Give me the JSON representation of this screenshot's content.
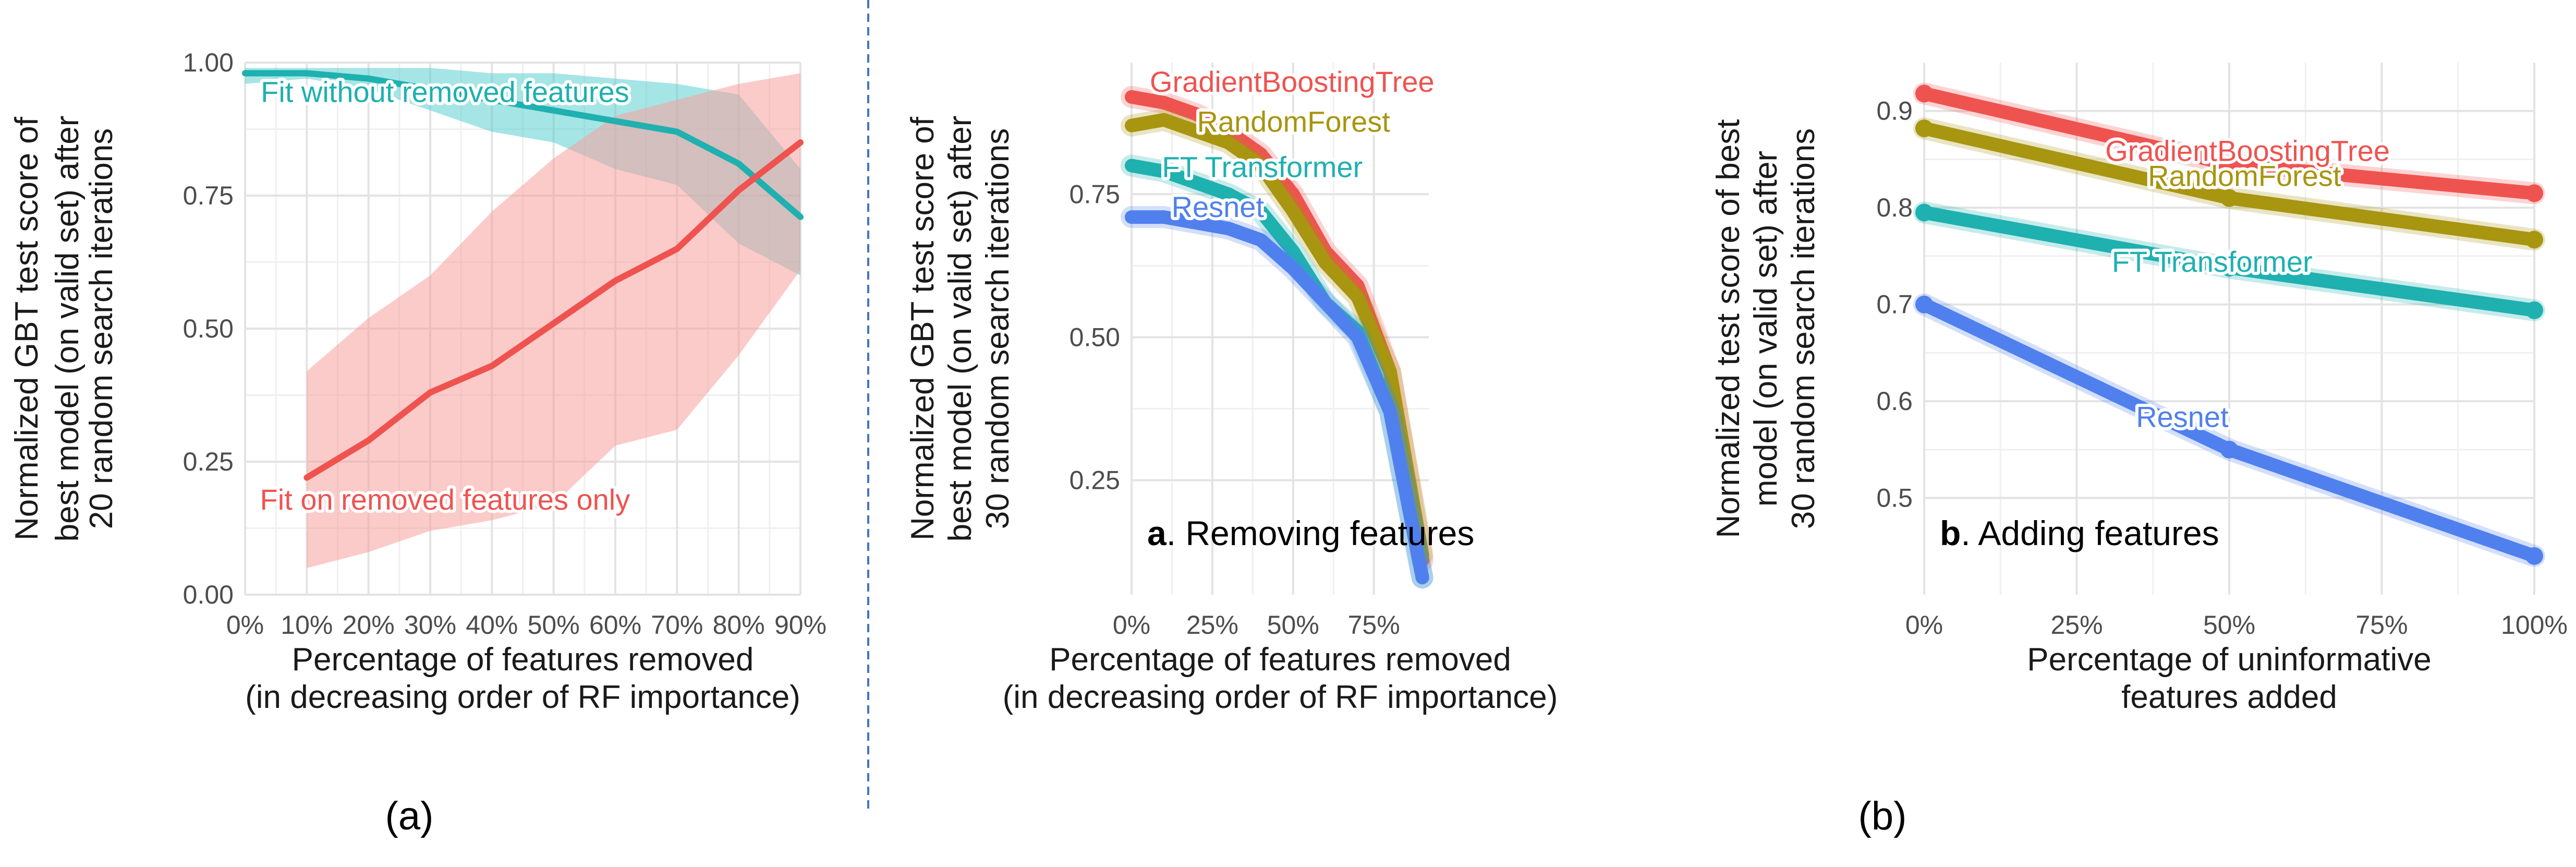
{
  "figure": {
    "sublabels": [
      "(a)",
      "(b)"
    ],
    "divider_color": "#4472c4"
  },
  "chart_data": [
    {
      "id": "panel_a",
      "type": "line",
      "title": "",
      "xlabel_lines": [
        "Percentage of features removed",
        "(in decreasing order of RF importance)"
      ],
      "ylabel_lines": [
        "Normalized GBT test score of",
        "best model (on valid set) after",
        "20 random search iterations"
      ],
      "xlim": [
        0,
        90
      ],
      "ylim": [
        0,
        1.0
      ],
      "x_ticks": [
        0,
        10,
        20,
        30,
        40,
        50,
        60,
        70,
        80,
        90
      ],
      "x_tick_labels": [
        "0%",
        "10%",
        "20%",
        "30%",
        "40%",
        "50%",
        "60%",
        "70%",
        "80%",
        "90%"
      ],
      "y_ticks": [
        0,
        0.25,
        0.5,
        0.75,
        1.0
      ],
      "y_tick_labels": [
        "0.00",
        "0.25",
        "0.50",
        "0.75",
        "1.00"
      ],
      "grid": true,
      "series": [
        {
          "name": "Fit without removed features",
          "color": "#1fb0b0",
          "band_color": "#5ccfcf",
          "x": [
            0,
            10,
            20,
            30,
            40,
            50,
            60,
            70,
            80,
            90
          ],
          "y": [
            0.98,
            0.98,
            0.97,
            0.95,
            0.93,
            0.91,
            0.89,
            0.87,
            0.81,
            0.71
          ],
          "lower": [
            0.96,
            0.97,
            0.95,
            0.91,
            0.87,
            0.85,
            0.8,
            0.77,
            0.66,
            0.6
          ],
          "upper": [
            0.99,
            0.99,
            0.99,
            0.99,
            0.98,
            0.98,
            0.97,
            0.96,
            0.94,
            0.8
          ]
        },
        {
          "name": "Fit on removed features only",
          "color": "#ef5350",
          "band_color": "#f7a09c",
          "x": [
            10,
            20,
            30,
            40,
            50,
            60,
            70,
            80,
            90
          ],
          "y": [
            0.22,
            0.29,
            0.38,
            0.43,
            0.51,
            0.59,
            0.65,
            0.76,
            0.85
          ],
          "lower": [
            0.05,
            0.08,
            0.12,
            0.14,
            0.17,
            0.28,
            0.31,
            0.45,
            0.61
          ],
          "upper": [
            0.42,
            0.52,
            0.6,
            0.72,
            0.82,
            0.9,
            0.93,
            0.96,
            0.98
          ]
        }
      ]
    },
    {
      "id": "panel_b_removing",
      "type": "line",
      "panel_letter": "a",
      "title": ". Removing features",
      "xlabel_lines": [
        "Percentage of features removed",
        "(in decreasing order of RF importance)"
      ],
      "ylabel_lines": [
        "Normalized GBT test score of",
        "best model (on valid set) after",
        "30 random search iterations"
      ],
      "xlim": [
        0,
        92
      ],
      "ylim": [
        0.05,
        0.98
      ],
      "x_ticks": [
        0,
        25,
        50,
        75
      ],
      "x_tick_labels": [
        "0%",
        "25%",
        "50%",
        "75%"
      ],
      "y_ticks": [
        0.25,
        0.5,
        0.75
      ],
      "y_tick_labels": [
        "0.25",
        "0.50",
        "0.75"
      ],
      "grid": true,
      "series": [
        {
          "name": "GradientBoostingTree",
          "color": "#ef5350",
          "x": [
            0,
            10,
            20,
            30,
            40,
            50,
            60,
            70,
            80,
            90
          ],
          "y": [
            0.92,
            0.91,
            0.89,
            0.86,
            0.82,
            0.75,
            0.65,
            0.59,
            0.44,
            0.11
          ]
        },
        {
          "name": "RandomForest",
          "color": "#a89510",
          "x": [
            0,
            10,
            20,
            30,
            40,
            50,
            60,
            70,
            80,
            90
          ],
          "y": [
            0.87,
            0.88,
            0.86,
            0.84,
            0.8,
            0.72,
            0.63,
            0.57,
            0.44,
            0.12
          ]
        },
        {
          "name": "FT Transformer",
          "color": "#1fb0b0",
          "x": [
            0,
            10,
            20,
            30,
            40,
            50,
            60,
            70,
            80,
            90
          ],
          "y": [
            0.8,
            0.79,
            0.77,
            0.75,
            0.72,
            0.65,
            0.56,
            0.51,
            0.37,
            0.08
          ]
        },
        {
          "name": "Resnet",
          "color": "#5080ee",
          "x": [
            0,
            10,
            20,
            30,
            40,
            50,
            60,
            70,
            80,
            90
          ],
          "y": [
            0.71,
            0.71,
            0.7,
            0.69,
            0.67,
            0.62,
            0.56,
            0.5,
            0.37,
            0.08
          ]
        }
      ]
    },
    {
      "id": "panel_b_adding",
      "type": "line",
      "panel_letter": "b",
      "title": ". Adding features",
      "xlabel_lines": [
        "Percentage of uninformative",
        "features added"
      ],
      "ylabel_lines": [
        "Normalized test score of best",
        "model (on valid set) after",
        "30 random search iterations"
      ],
      "xlim": [
        0,
        100
      ],
      "ylim": [
        0.4,
        0.95
      ],
      "x_ticks": [
        0,
        25,
        50,
        75,
        100
      ],
      "x_tick_labels": [
        "0%",
        "25%",
        "50%",
        "75%",
        "100%"
      ],
      "y_ticks": [
        0.5,
        0.6,
        0.7,
        0.8,
        0.9
      ],
      "y_tick_labels": [
        "0.5",
        "0.6",
        "0.7",
        "0.8",
        "0.9"
      ],
      "grid": true,
      "series": [
        {
          "name": "GradientBoostingTree",
          "color": "#ef5350",
          "x": [
            0,
            50,
            100
          ],
          "y": [
            0.918,
            0.845,
            0.815
          ]
        },
        {
          "name": "RandomForest",
          "color": "#a89510",
          "x": [
            0,
            50,
            100
          ],
          "y": [
            0.882,
            0.81,
            0.767
          ]
        },
        {
          "name": "FT Transformer",
          "color": "#1fb0b0",
          "x": [
            0,
            50,
            100
          ],
          "y": [
            0.795,
            0.738,
            0.694
          ]
        },
        {
          "name": "Resnet",
          "color": "#5080ee",
          "x": [
            0,
            50,
            100
          ],
          "y": [
            0.7,
            0.55,
            0.44
          ]
        }
      ]
    }
  ]
}
